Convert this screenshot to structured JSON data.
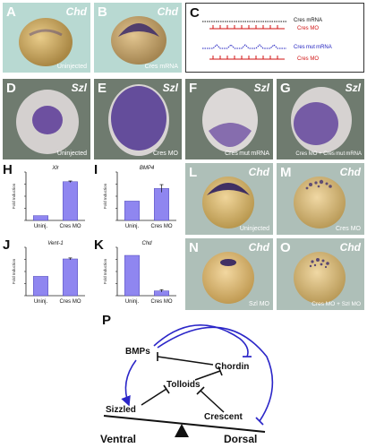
{
  "panels": {
    "A": {
      "letter": "A",
      "gene": "Chd",
      "caption": "Uninjected"
    },
    "B": {
      "letter": "B",
      "gene": "Chd",
      "caption": "Cres mRNA"
    },
    "C": {
      "letter": "C",
      "row1_label": "Cres mRNA",
      "row2_label": "Cres MO",
      "row3_label": "Cres mut mRNA",
      "row4_label": "Cres MO"
    },
    "D": {
      "letter": "D",
      "gene": "Szl",
      "caption": "Uninjected"
    },
    "E": {
      "letter": "E",
      "gene": "Szl",
      "caption": "Cres MO"
    },
    "F": {
      "letter": "F",
      "gene": "Szl",
      "caption": "Cres mut mRNA"
    },
    "G": {
      "letter": "G",
      "gene": "Szl",
      "caption": "Cres MO + Cres mut mRNA"
    },
    "L": {
      "letter": "L",
      "gene": "Chd",
      "caption": "Uninjected"
    },
    "M": {
      "letter": "M",
      "gene": "Chd",
      "caption": "Cres MO"
    },
    "N": {
      "letter": "N",
      "gene": "Chd",
      "caption": "Szl MO"
    },
    "O": {
      "letter": "O",
      "gene": "Chd",
      "caption": "Cres MO + Szl MO"
    }
  },
  "chart_data": [
    {
      "panel": "H",
      "type": "bar",
      "title": "Xlr",
      "ylabel": "Fold Induction",
      "categories": [
        "Uninj.",
        "Cres MO"
      ],
      "values": [
        1,
        8
      ],
      "ylim": [
        0,
        10
      ],
      "errors": [
        0,
        0.15
      ],
      "color": "#8f86f0"
    },
    {
      "panel": "I",
      "type": "bar",
      "title": "BMP4",
      "ylabel": "Fold Induction",
      "categories": [
        "Uninj.",
        "Cres MO"
      ],
      "values": [
        1,
        1.65
      ],
      "ylim": [
        0,
        2.5
      ],
      "errors": [
        0,
        0.2
      ],
      "color": "#8f86f0"
    },
    {
      "panel": "J",
      "type": "bar",
      "title": "Vent-1",
      "ylabel": "Fold Induction",
      "categories": [
        "Uninj.",
        "Cres MO"
      ],
      "values": [
        1,
        1.9
      ],
      "ylim": [
        0,
        2.5
      ],
      "errors": [
        0,
        0.05
      ],
      "color": "#8f86f0"
    },
    {
      "panel": "K",
      "type": "bar",
      "title": "Chd",
      "ylabel": "Fold Induction",
      "categories": [
        "Uninj.",
        "Cres MO"
      ],
      "values": [
        1,
        0.12
      ],
      "ylim": [
        0,
        1.2
      ],
      "errors": [
        0,
        0.03
      ],
      "color": "#8f86f0"
    }
  ],
  "diagram": {
    "letter": "P",
    "nodes": {
      "bmps": "BMPs",
      "chordin": "Chordin",
      "tolloids": "Tolloids",
      "sizzled": "Sizzled",
      "crescent": "Crescent"
    },
    "ventral": "Ventral",
    "dorsal": "Dorsal",
    "arrow_color": "#2b26c8"
  }
}
